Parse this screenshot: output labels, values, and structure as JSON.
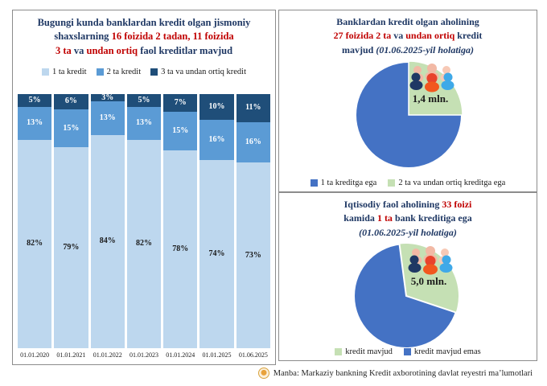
{
  "colors": {
    "bar_light": "#BDD7EE",
    "bar_mid": "#5B9BD5",
    "bar_dark": "#1F4E79",
    "pie_blue": "#4472C4",
    "pie_green": "#C5E0B4",
    "title_navy": "#1F3864",
    "highlight_red": "#C00000"
  },
  "left_panel": {
    "title_lines": [
      [
        {
          "t": "Bugungi kunda banklardan kredit olgan jismoniy",
          "c": ""
        }
      ],
      [
        {
          "t": "shaxslarning ",
          "c": ""
        },
        {
          "t": "16 foizida 2 tadan, 11 foizida",
          "c": "red"
        }
      ],
      [
        {
          "t": "3 ta",
          "c": "red"
        },
        {
          "t": " va ",
          "c": ""
        },
        {
          "t": "undan ortiq",
          "c": "red"
        },
        {
          "t": " faol kreditlar mavjud",
          "c": ""
        }
      ]
    ],
    "legend": [
      {
        "label": "1 ta kredit"
      },
      {
        "label": "2 ta kredit"
      },
      {
        "label": "3 ta va undan ortiq kredit"
      }
    ]
  },
  "top_right": {
    "title_lines": [
      [
        {
          "t": "Banklardan kredit olgan aholining",
          "c": ""
        }
      ],
      [
        {
          "t": "27 foizida 2 ta",
          "c": "red"
        },
        {
          "t": " va ",
          "c": ""
        },
        {
          "t": "undan ortiq",
          "c": "red"
        },
        {
          "t": " kredit",
          "c": ""
        }
      ],
      [
        {
          "t": "mavjud ",
          "c": ""
        },
        {
          "t": "(01.06.2025-yil holatiga)",
          "c": "",
          "i": true
        }
      ]
    ]
  },
  "bottom_right": {
    "title_lines": [
      [
        {
          "t": "Iqtisodiy faol aholining ",
          "c": ""
        },
        {
          "t": "33 foizi",
          "c": "red"
        }
      ],
      [
        {
          "t": "kamida ",
          "c": ""
        },
        {
          "t": "1 ta",
          "c": "red"
        },
        {
          "t": " bank kreditiga ega",
          "c": ""
        }
      ],
      [
        {
          "t": "(01.06.2025-yil holatiga)",
          "c": "",
          "i": true
        }
      ]
    ]
  },
  "footer": {
    "source": "Manba: Markaziy bankning Kredit axborotining davlat reyestri ma’lumotlari"
  },
  "chart_data": [
    {
      "type": "bar",
      "stacked": true,
      "unit": "%",
      "title": "Bugungi kunda banklardan kredit olgan jismoniy shaxslarning 16 foizida 2 tadan, 11 foizida 3 ta va undan ortiq faol kreditlar mavjud",
      "categories": [
        "01.01.2020",
        "01.01.2021",
        "01.01.2022",
        "01.01.2023",
        "01.01.2024",
        "01.01.2025",
        "01.06.2025"
      ],
      "series": [
        {
          "name": "1 ta kredit",
          "values": [
            82,
            79,
            84,
            82,
            78,
            74,
            73
          ]
        },
        {
          "name": "2 ta kredit",
          "values": [
            13,
            15,
            13,
            13,
            15,
            16,
            16
          ]
        },
        {
          "name": "3 ta va undan ortiq kredit",
          "values": [
            5,
            6,
            3,
            5,
            7,
            10,
            11
          ]
        }
      ],
      "ylim": [
        0,
        100
      ],
      "grid": false,
      "legend_position": "top"
    },
    {
      "type": "pie",
      "title": "Banklardan kredit olgan aholining 27 foizida 2 ta va undan ortiq kredit mavjud (01.06.2025-yil holatiga)",
      "labels": [
        "1 ta kreditga ega",
        "2 ta va undan ortiq kreditga ega"
      ],
      "values": [
        73,
        27
      ],
      "center_label": "1,4 mln.",
      "legend_position": "bottom"
    },
    {
      "type": "pie",
      "title": "Iqtisodiy faol aholining 33 foizi kamida 1 ta bank kreditiga ega (01.06.2025-yil holatiga)",
      "labels": [
        "kredit mavjud",
        "kredit mavjud emas"
      ],
      "values": [
        33,
        67
      ],
      "center_label": "5,0 mln.",
      "legend_position": "bottom"
    }
  ]
}
